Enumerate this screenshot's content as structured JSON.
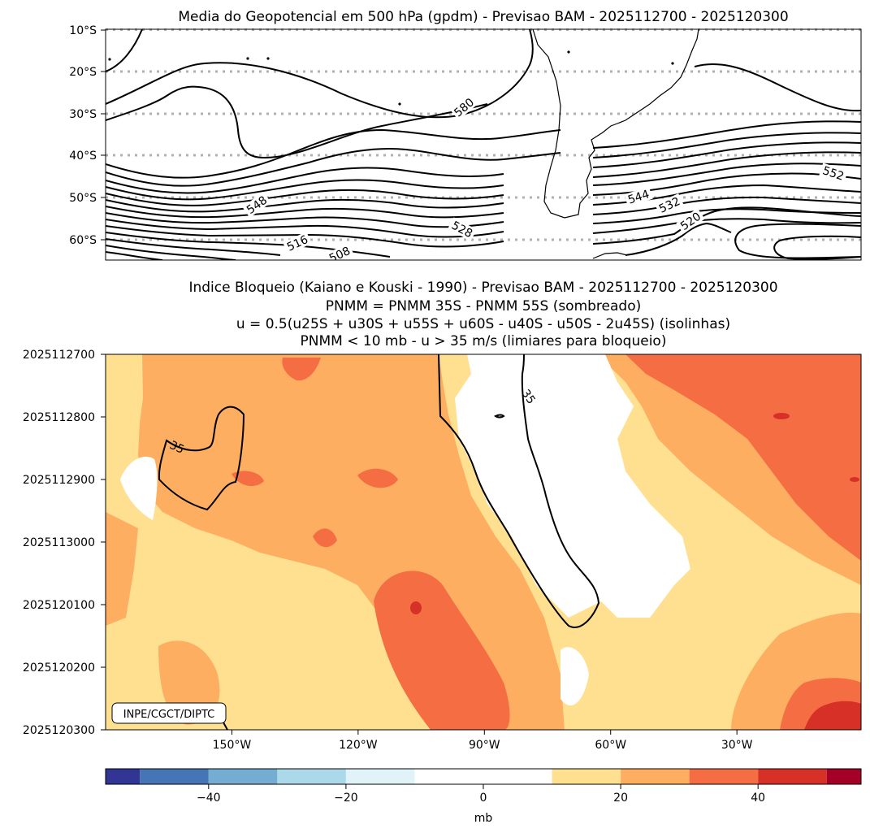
{
  "chart_data": [
    {
      "type": "contour-map",
      "title": "Media do Geopotencial em 500 hPa (gpdm) - Previsao BAM - 2025112700 - 2025120300",
      "y_ticks": [
        "10°S",
        "20°S",
        "30°S",
        "40°S",
        "50°S",
        "60°S"
      ],
      "lat_range": [
        -65,
        -10
      ],
      "lon_range": [
        -180,
        -0.5
      ],
      "grid_latitudes": [
        -10,
        -20,
        -30,
        -40,
        -50,
        -60
      ],
      "contour_labels": [
        "580",
        "552",
        "548",
        "544",
        "532",
        "528",
        "520",
        "516",
        "508"
      ]
    },
    {
      "type": "heatmap",
      "title_lines": [
        "Indice Bloqueio (Kaiano e Kouski - 1990) - Previsao BAM - 2025112700 - 2025120300",
        "PNMM = PNMM 35S - PNMM 55S (sombreado)",
        "u = 0.5(u25S + u30S + u55S + u60S - u40S - u50S - 2u45S) (isolinhas)",
        "PNMM < 10 mb - u > 35 m/s (limiares para bloqueio)"
      ],
      "y_ticks": [
        "2025112700",
        "2025112800",
        "2025112900",
        "2025113000",
        "2025120100",
        "2025120200",
        "2025120300"
      ],
      "x_ticks": [
        "150°W",
        "120°W",
        "90°W",
        "60°W",
        "30°W"
      ],
      "x_tick_values": [
        -150,
        -120,
        -90,
        -60,
        -30
      ],
      "x_range": [
        -180,
        -0.5
      ],
      "isoline_label": "35",
      "credit": "INPE/CGCT/DIPTC"
    },
    {
      "type": "colorbar",
      "ticks": [
        "−40",
        "−20",
        "0",
        "20",
        "40"
      ],
      "tick_values": [
        -40,
        -20,
        0,
        20,
        40
      ],
      "range": [
        -55,
        55
      ],
      "boundaries": [
        -55,
        -50,
        -40,
        -30,
        -20,
        -10,
        10,
        20,
        30,
        40,
        50,
        55
      ],
      "colors": [
        "#313695",
        "#4575b4",
        "#74add1",
        "#abd9e9",
        "#e0f3f8",
        "#ffffff",
        "#fee090",
        "#fdae61",
        "#f46d43",
        "#d73027",
        "#a50026"
      ],
      "label": "mb"
    }
  ]
}
